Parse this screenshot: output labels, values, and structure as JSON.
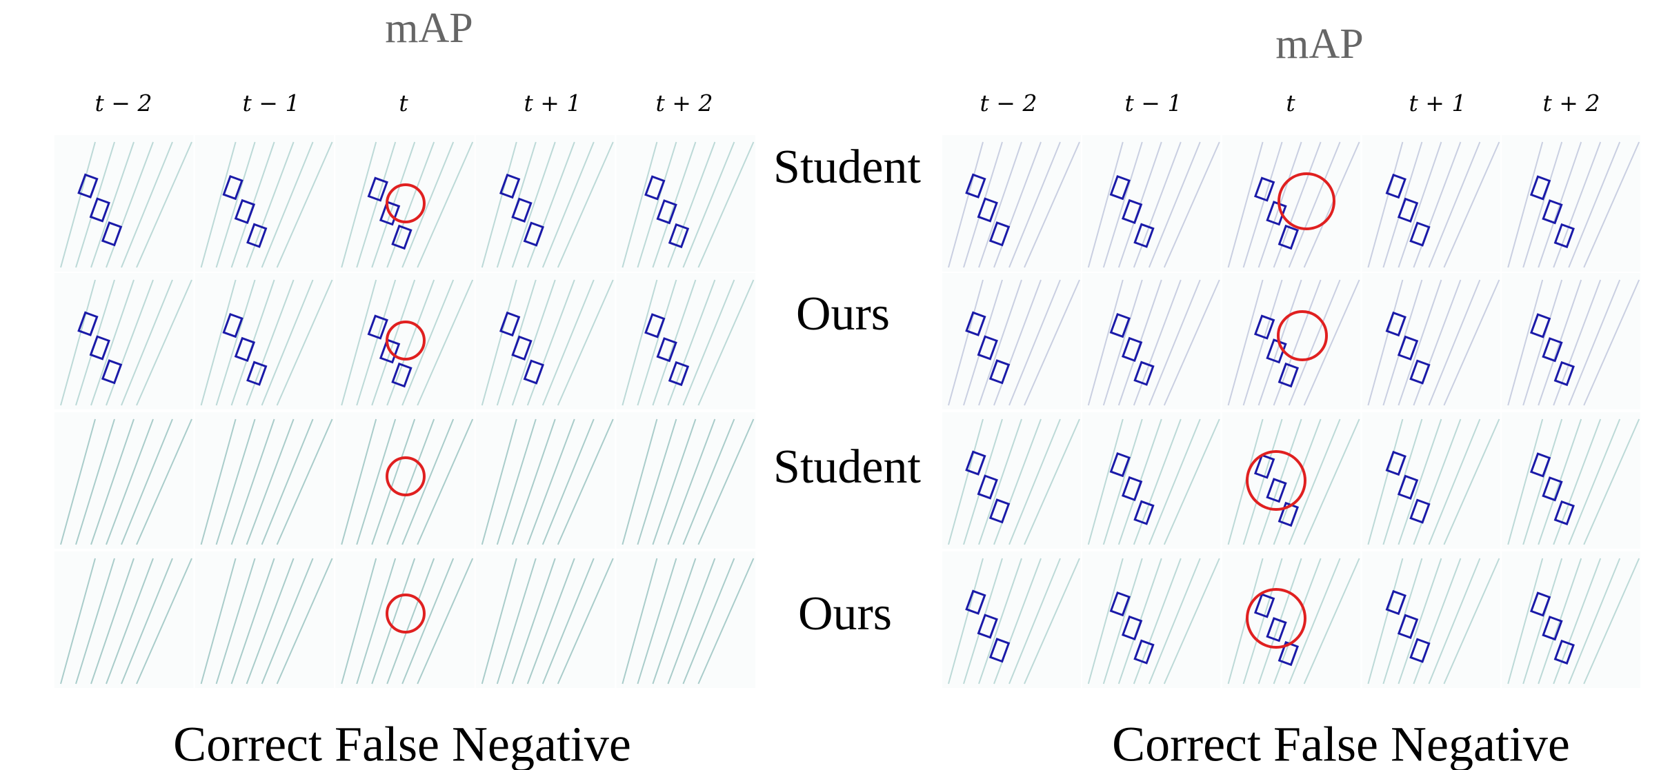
{
  "panels": [
    {
      "title": "mAP",
      "columns": [
        "t − 2",
        "t − 1",
        "t",
        "t + 1",
        "t + 2"
      ],
      "caption": "Correct False Negative"
    },
    {
      "title": "mAP",
      "columns": [
        "t − 2",
        "t − 1",
        "t",
        "t + 1",
        "t + 2"
      ],
      "caption": "Correct False Negative"
    }
  ],
  "row_labels": [
    "Student",
    "Ours",
    "Student",
    "Ours"
  ]
}
